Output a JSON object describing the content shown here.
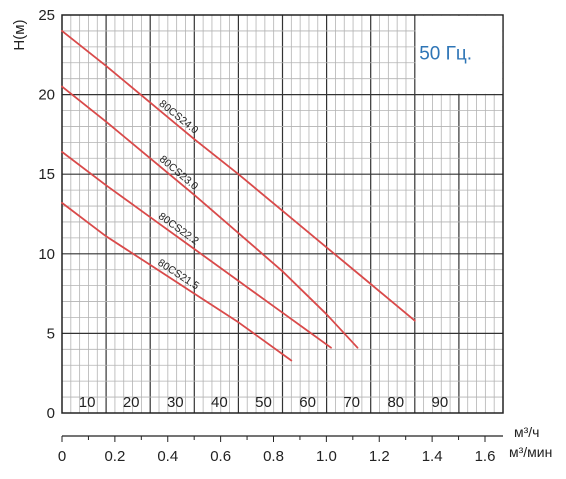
{
  "chart_data": {
    "type": "line",
    "ylabel": "H(м)",
    "annotation": "50 Гц.",
    "x_unit_top": "м³/ч",
    "x_unit_bottom": "м³/мин",
    "xlim": [
      0,
      100
    ],
    "ylim": [
      0,
      25
    ],
    "y_ticks": [
      "0",
      "5",
      "10",
      "15",
      "20",
      "25"
    ],
    "x_ticks_top": [
      "10",
      "20",
      "30",
      "40",
      "50",
      "60",
      "70",
      "80",
      "90"
    ],
    "x_ticks_bottom": [
      "0",
      "0.2",
      "0.4",
      "0.6",
      "0.8",
      "1.0",
      "1.2",
      "1.4",
      "1.6"
    ],
    "grid": true,
    "series": [
      {
        "name": "80CS24.0",
        "x": [
          0,
          10,
          20,
          30,
          40,
          50,
          60,
          70,
          80
        ],
        "y": [
          24.0,
          21.8,
          19.5,
          17.2,
          15.0,
          12.7,
          10.4,
          8.1,
          5.8
        ]
      },
      {
        "name": "80CS23.0",
        "x": [
          0,
          10,
          20,
          30,
          40,
          50,
          60,
          67
        ],
        "y": [
          20.5,
          18.3,
          16.0,
          13.7,
          11.3,
          8.9,
          6.2,
          4.1
        ]
      },
      {
        "name": "80CS22.2",
        "x": [
          0,
          10,
          20,
          30,
          40,
          50,
          55,
          61
        ],
        "y": [
          16.4,
          14.3,
          12.3,
          10.3,
          8.3,
          6.3,
          5.3,
          4.1
        ]
      },
      {
        "name": "80CS21.5",
        "x": [
          0,
          10,
          20,
          30,
          40,
          52
        ],
        "y": [
          13.2,
          11.1,
          9.3,
          7.5,
          5.7,
          3.3
        ]
      }
    ],
    "line_color": "#d94a4a",
    "annotation_color": "#2e75b6"
  }
}
